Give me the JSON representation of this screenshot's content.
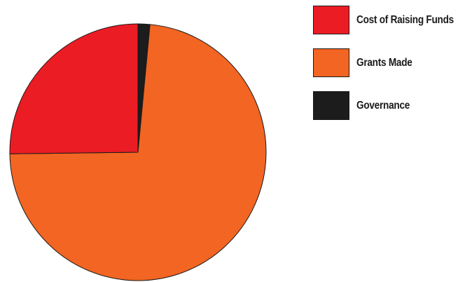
{
  "chart_data": {
    "type": "pie",
    "title": "",
    "slices": [
      {
        "name": "Cost of Raising Funds",
        "value": 25.2,
        "color": "#ec1c24"
      },
      {
        "name": "Grants Made",
        "value": 73.3,
        "color": "#f26522"
      },
      {
        "name": "Governance",
        "value": 1.5,
        "color": "#1c1c1c"
      }
    ],
    "legend_position": "top-right"
  }
}
